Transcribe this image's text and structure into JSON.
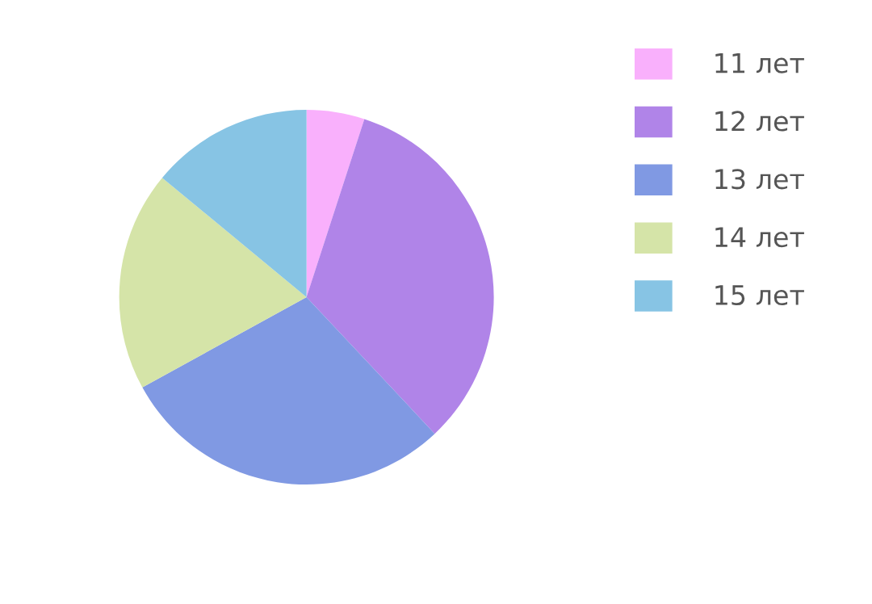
{
  "chart_data": {
    "type": "pie",
    "categories": [
      "11 лет",
      "12 лет",
      "13 лет",
      "14 лет",
      "15 лет"
    ],
    "values": [
      5,
      33,
      29,
      19,
      14
    ],
    "colors": [
      "#f9b0fc",
      "#b084e8",
      "#8099e3",
      "#d5e4a8",
      "#87c4e4"
    ],
    "legend": "right"
  }
}
